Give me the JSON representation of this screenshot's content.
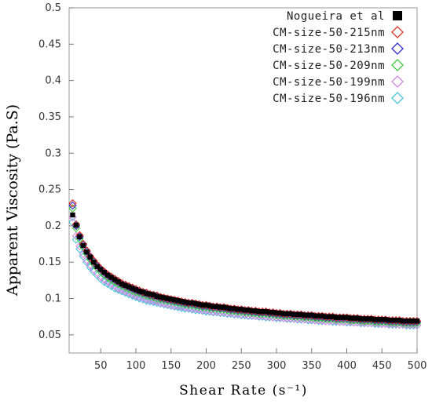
{
  "chart_data": {
    "type": "scatter",
    "xlabel": "Shear Rate (s⁻¹)",
    "ylabel": "Apparent Viscosity (Pa.S)",
    "xlim": [
      5,
      500
    ],
    "ylim": [
      0.025,
      0.5
    ],
    "x_ticks": [
      50,
      100,
      150,
      200,
      250,
      300,
      350,
      400,
      450,
      500
    ],
    "x_tick_labels": [
      "50",
      "100",
      "150",
      "200",
      "250",
      "300",
      "350",
      "400",
      "450",
      "500"
    ],
    "y_ticks": [
      0.05,
      0.1,
      0.15,
      0.2,
      0.25,
      0.3,
      0.35,
      0.4,
      0.45,
      0.5
    ],
    "y_tick_labels": [
      "0.05",
      "0.1",
      "0.15",
      "0.2",
      "0.25",
      "0.3",
      "0.35",
      "0.4",
      "0.45",
      "0.5"
    ],
    "legend_position": "top-right",
    "grid": false,
    "x": [
      10,
      15,
      20,
      25,
      30,
      35,
      40,
      45,
      50,
      55,
      60,
      65,
      70,
      75,
      80,
      85,
      90,
      95,
      100,
      105,
      110,
      115,
      120,
      125,
      130,
      135,
      140,
      145,
      150,
      155,
      160,
      165,
      170,
      175,
      180,
      185,
      190,
      195,
      200,
      205,
      210,
      215,
      220,
      225,
      230,
      235,
      240,
      245,
      250,
      255,
      260,
      265,
      270,
      275,
      280,
      285,
      290,
      295,
      300,
      305,
      310,
      315,
      320,
      325,
      330,
      335,
      340,
      345,
      350,
      355,
      360,
      365,
      370,
      375,
      380,
      385,
      390,
      395,
      400,
      405,
      410,
      415,
      420,
      425,
      430,
      435,
      440,
      445,
      450,
      455,
      460,
      465,
      470,
      475,
      480,
      485,
      490,
      495,
      500
    ],
    "series": [
      {
        "name": "Nogueira et al",
        "marker": "square",
        "color": "#000000",
        "x_start": 10,
        "x_step": 5,
        "values": [
          0.215,
          0.201,
          0.185,
          0.173,
          0.164,
          0.157,
          0.15,
          0.144,
          0.14,
          0.136,
          0.132,
          0.129,
          0.126,
          0.123,
          0.12,
          0.118,
          0.116,
          0.114,
          0.112,
          0.11,
          0.109,
          0.107,
          0.106,
          0.105,
          0.103,
          0.102,
          0.101,
          0.1,
          0.099,
          0.098,
          0.097,
          0.096,
          0.095,
          0.094,
          0.094,
          0.093,
          0.092,
          0.091,
          0.091,
          0.09,
          0.089,
          0.089,
          0.088,
          0.088,
          0.087,
          0.086,
          0.086,
          0.085,
          0.085,
          0.084,
          0.084,
          0.083,
          0.083,
          0.082,
          0.082,
          0.082,
          0.081,
          0.081,
          0.08,
          0.08,
          0.079,
          0.079,
          0.079,
          0.078,
          0.078,
          0.078,
          0.077,
          0.077,
          0.077,
          0.076,
          0.076,
          0.076,
          0.075,
          0.075,
          0.075,
          0.074,
          0.074,
          0.074,
          0.074,
          0.073,
          0.073,
          0.073,
          0.072,
          0.072,
          0.072,
          0.072,
          0.071,
          0.071,
          0.071,
          0.071,
          0.07,
          0.07,
          0.07,
          0.07,
          0.069,
          0.069,
          0.069,
          0.069,
          0.069
        ]
      },
      {
        "name": "CM-size-50-215nm",
        "marker": "diamond",
        "color": "#d9342b",
        "x_start": 10,
        "x_step": 5,
        "values": [
          0.231,
          0.202,
          0.187,
          0.175,
          0.166,
          0.158,
          0.152,
          0.146,
          0.141,
          0.137,
          0.133,
          0.13,
          0.127,
          0.124,
          0.121,
          0.119,
          0.117,
          0.115,
          0.113,
          0.111,
          0.109,
          0.108,
          0.106,
          0.105,
          0.104,
          0.102,
          0.101,
          0.1,
          0.099,
          0.098,
          0.097,
          0.096,
          0.095,
          0.094,
          0.094,
          0.093,
          0.092,
          0.091,
          0.091,
          0.09,
          0.089,
          0.089,
          0.088,
          0.088,
          0.087,
          0.086,
          0.086,
          0.085,
          0.085,
          0.084,
          0.084,
          0.083,
          0.083,
          0.082,
          0.082,
          0.082,
          0.081,
          0.081,
          0.08,
          0.08,
          0.079,
          0.079,
          0.079,
          0.078,
          0.078,
          0.078,
          0.077,
          0.077,
          0.077,
          0.076,
          0.076,
          0.076,
          0.075,
          0.075,
          0.075,
          0.074,
          0.074,
          0.074,
          0.074,
          0.073,
          0.073,
          0.073,
          0.072,
          0.072,
          0.072,
          0.072,
          0.071,
          0.071,
          0.071,
          0.071,
          0.07,
          0.07,
          0.07,
          0.07,
          0.069,
          0.069,
          0.069,
          0.069,
          0.069
        ]
      },
      {
        "name": "CM-size-50-213nm",
        "marker": "diamond",
        "color": "#2a2ad0",
        "x_start": 10,
        "x_step": 5,
        "values": [
          0.228,
          0.2,
          0.185,
          0.174,
          0.165,
          0.157,
          0.151,
          0.145,
          0.14,
          0.136,
          0.132,
          0.129,
          0.126,
          0.123,
          0.12,
          0.118,
          0.116,
          0.114,
          0.112,
          0.11,
          0.108,
          0.107,
          0.105,
          0.104,
          0.103,
          0.101,
          0.1,
          0.099,
          0.098,
          0.097,
          0.096,
          0.095,
          0.094,
          0.093,
          0.093,
          0.092,
          0.091,
          0.09,
          0.09,
          0.089,
          0.088,
          0.088,
          0.087,
          0.087,
          0.086,
          0.085,
          0.085,
          0.084,
          0.084,
          0.083,
          0.083,
          0.082,
          0.082,
          0.081,
          0.081,
          0.081,
          0.08,
          0.08,
          0.079,
          0.079,
          0.078,
          0.078,
          0.078,
          0.077,
          0.077,
          0.077,
          0.076,
          0.076,
          0.076,
          0.075,
          0.075,
          0.075,
          0.074,
          0.074,
          0.074,
          0.073,
          0.073,
          0.073,
          0.073,
          0.072,
          0.072,
          0.072,
          0.071,
          0.071,
          0.071,
          0.071,
          0.07,
          0.07,
          0.07,
          0.07,
          0.069,
          0.069,
          0.069,
          0.069,
          0.068,
          0.068,
          0.068,
          0.068,
          0.068
        ]
      },
      {
        "name": "CM-size-50-209nm",
        "marker": "diamond",
        "color": "#3cc83c",
        "x_start": 10,
        "x_step": 5,
        "values": [
          0.224,
          0.197,
          0.182,
          0.171,
          0.162,
          0.154,
          0.148,
          0.142,
          0.137,
          0.133,
          0.129,
          0.126,
          0.123,
          0.12,
          0.118,
          0.115,
          0.113,
          0.111,
          0.109,
          0.108,
          0.106,
          0.104,
          0.103,
          0.102,
          0.1,
          0.099,
          0.098,
          0.097,
          0.096,
          0.095,
          0.094,
          0.093,
          0.092,
          0.091,
          0.091,
          0.09,
          0.089,
          0.088,
          0.088,
          0.087,
          0.086,
          0.086,
          0.085,
          0.085,
          0.084,
          0.083,
          0.083,
          0.082,
          0.082,
          0.081,
          0.081,
          0.08,
          0.08,
          0.079,
          0.079,
          0.079,
          0.078,
          0.078,
          0.077,
          0.077,
          0.076,
          0.076,
          0.076,
          0.075,
          0.075,
          0.075,
          0.074,
          0.074,
          0.074,
          0.073,
          0.073,
          0.073,
          0.072,
          0.072,
          0.072,
          0.071,
          0.071,
          0.071,
          0.071,
          0.07,
          0.07,
          0.07,
          0.069,
          0.069,
          0.069,
          0.069,
          0.068,
          0.068,
          0.068,
          0.068,
          0.067,
          0.067,
          0.067,
          0.067,
          0.066,
          0.066,
          0.066,
          0.066,
          0.066
        ]
      },
      {
        "name": "CM-size-50-199nm",
        "marker": "diamond",
        "color": "#cf86e0",
        "x_start": 10,
        "x_step": 5,
        "values": [
          0.212,
          0.186,
          0.172,
          0.161,
          0.153,
          0.146,
          0.14,
          0.135,
          0.13,
          0.126,
          0.123,
          0.12,
          0.117,
          0.114,
          0.112,
          0.11,
          0.108,
          0.106,
          0.104,
          0.102,
          0.101,
          0.099,
          0.098,
          0.097,
          0.096,
          0.094,
          0.093,
          0.092,
          0.091,
          0.09,
          0.09,
          0.089,
          0.088,
          0.087,
          0.086,
          0.086,
          0.085,
          0.084,
          0.084,
          0.083,
          0.082,
          0.082,
          0.081,
          0.081,
          0.08,
          0.08,
          0.079,
          0.079,
          0.078,
          0.078,
          0.077,
          0.077,
          0.076,
          0.076,
          0.076,
          0.075,
          0.075,
          0.074,
          0.074,
          0.074,
          0.073,
          0.073,
          0.073,
          0.072,
          0.072,
          0.072,
          0.071,
          0.071,
          0.071,
          0.07,
          0.07,
          0.07,
          0.069,
          0.069,
          0.069,
          0.069,
          0.068,
          0.068,
          0.068,
          0.068,
          0.067,
          0.067,
          0.067,
          0.067,
          0.066,
          0.066,
          0.066,
          0.066,
          0.065,
          0.065,
          0.065,
          0.065,
          0.065,
          0.064,
          0.064,
          0.064,
          0.064,
          0.064,
          0.063
        ]
      },
      {
        "name": "CM-size-50-196nm",
        "marker": "diamond",
        "color": "#48c4d8",
        "x_start": 10,
        "x_step": 5,
        "values": [
          0.205,
          0.181,
          0.168,
          0.158,
          0.15,
          0.143,
          0.137,
          0.132,
          0.127,
          0.123,
          0.12,
          0.117,
          0.114,
          0.112,
          0.11,
          0.108,
          0.106,
          0.104,
          0.102,
          0.1,
          0.099,
          0.097,
          0.096,
          0.095,
          0.094,
          0.093,
          0.092,
          0.091,
          0.09,
          0.089,
          0.088,
          0.087,
          0.086,
          0.086,
          0.085,
          0.084,
          0.084,
          0.083,
          0.082,
          0.082,
          0.081,
          0.081,
          0.08,
          0.08,
          0.079,
          0.079,
          0.078,
          0.078,
          0.077,
          0.077,
          0.076,
          0.076,
          0.076,
          0.075,
          0.075,
          0.074,
          0.074,
          0.074,
          0.073,
          0.073,
          0.073,
          0.072,
          0.072,
          0.072,
          0.071,
          0.071,
          0.071,
          0.07,
          0.07,
          0.07,
          0.069,
          0.069,
          0.069,
          0.069,
          0.068,
          0.068,
          0.068,
          0.068,
          0.067,
          0.067,
          0.067,
          0.067,
          0.066,
          0.066,
          0.066,
          0.066,
          0.065,
          0.065,
          0.065,
          0.065,
          0.064,
          0.064,
          0.064,
          0.064,
          0.064,
          0.063,
          0.063,
          0.063,
          0.063
        ]
      }
    ]
  }
}
